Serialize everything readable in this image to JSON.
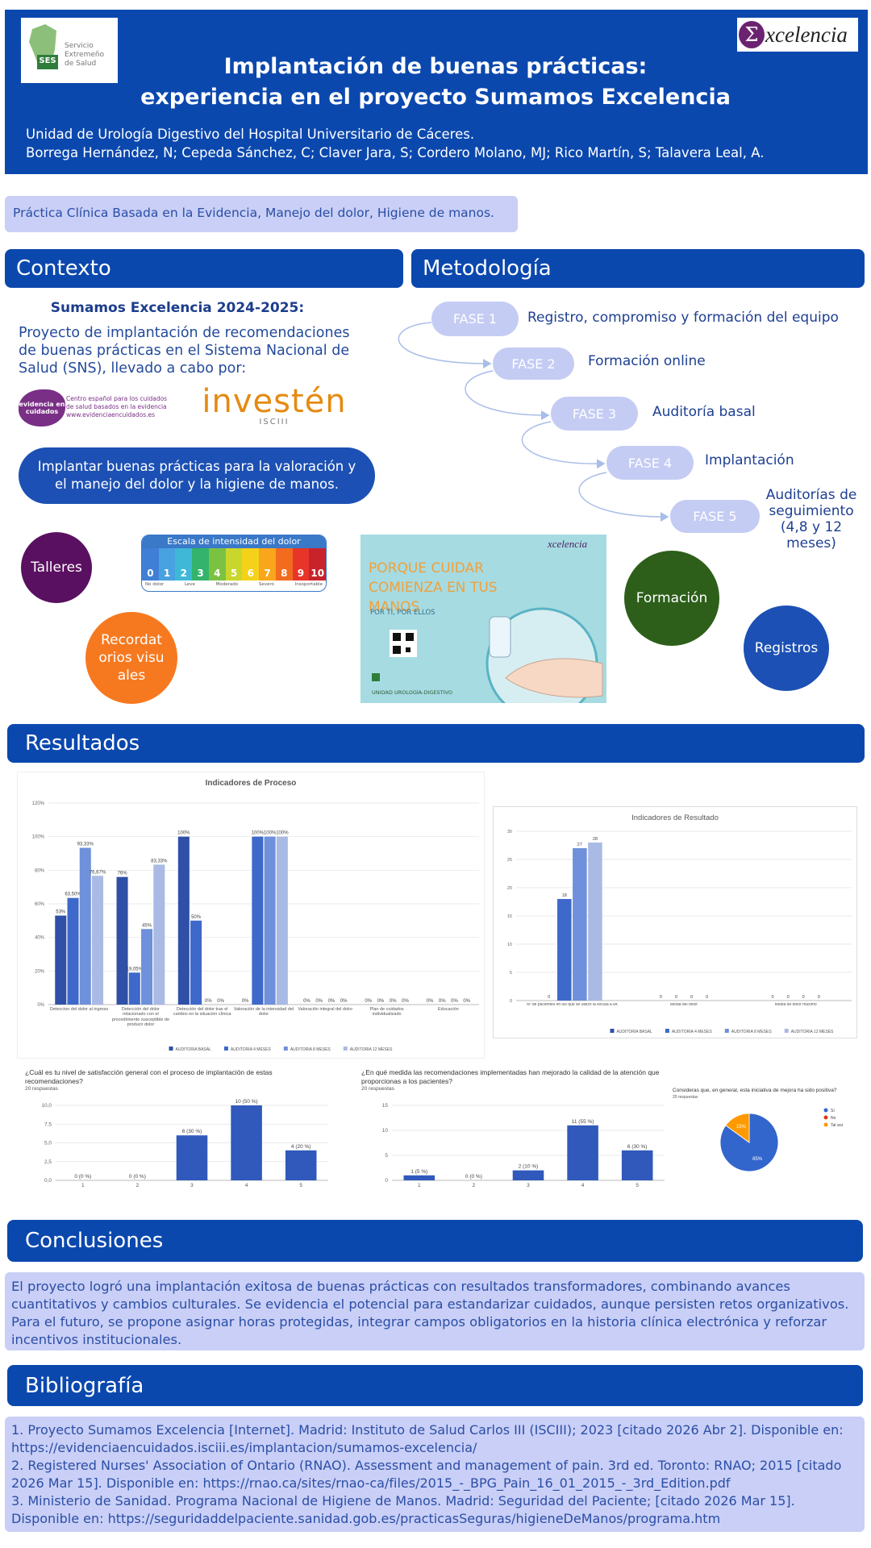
{
  "header": {
    "logo_left": {
      "badge": "SES",
      "lines": [
        "Servicio",
        "Extremeño",
        "de Salud"
      ]
    },
    "logo_right": {
      "symbol": "Σ",
      "text": "xcelencia"
    },
    "title": [
      "Implantación de buenas prácticas:",
      "experiencia en el proyecto Sumamos Excelencia"
    ],
    "affiliation": "Unidad de Urología Digestivo del Hospital Universitario de Cáceres.",
    "authors": "Borrega Hernández, N; Cepeda Sánchez, C; Claver Jara, S; Cordero Molano, MJ; Rico Martín, S; Talavera Leal, A."
  },
  "keywords": "Práctica Clínica Basada en la Evidencia, Manejo del dolor, Higiene de manos.",
  "context": {
    "heading": "Contexto",
    "subheading": "Sumamos Excelencia 2024-2025:",
    "text": "Proyecto de implantación de recomendaciones de buenas prácticas en el Sistema  Nacional de Salud (SNS), llevado a cabo por:",
    "partners": {
      "evidencia": {
        "mark": "evidencia en cuidados",
        "lines": [
          "Centro español para los cuidados",
          "de salud basados en la evidencia",
          "www.evidenciaencuidados.es"
        ]
      },
      "investen": {
        "name": "investén",
        "sub": "ISCIII"
      }
    },
    "goal": "Implantar buenas prácticas para la valoración y el manejo del dolor y la higiene de manos.",
    "actions": [
      "Talleres",
      "Recordatorios visuales"
    ],
    "pain_scale": {
      "title": "Escala de intensidad del dolor",
      "numbers": [
        "0",
        "1",
        "2",
        "3",
        "4",
        "5",
        "6",
        "7",
        "8",
        "9",
        "10"
      ],
      "levels": [
        "No dolor",
        "Leve",
        "Moderado",
        "Severo",
        "Insoportable"
      ]
    },
    "hand_poster": {
      "logo": "xcelencia",
      "headline": "PORQUE CUIDAR COMIENZA EN TUS MANOS",
      "tagline": "POR TI, POR ELLOS",
      "unit": "UNIDAD UROLOGÍA-DIGESTIVO"
    }
  },
  "methodology": {
    "heading": "Metodología",
    "phases": [
      {
        "label": "FASE 1",
        "text": "Registro, compromiso y formación del equipo"
      },
      {
        "label": "FASE 2",
        "text": "Formación online"
      },
      {
        "label": "FASE 3",
        "text": "Auditoría basal"
      },
      {
        "label": "FASE 4",
        "text": "Implantación"
      },
      {
        "label": "FASE 5",
        "text": "Auditorías de seguimiento (4,8 y 12 meses)"
      }
    ],
    "actions": [
      "Formación",
      "Registros"
    ]
  },
  "results": {
    "heading": "Resultados"
  },
  "chart_data": [
    {
      "type": "bar",
      "title": "Indicadores de Proceso",
      "categories": [
        "Deteccion del dolor al ingreso",
        "Detección del dolor relacionado con el procedimiento susceptible de producir dolor",
        "Detección del dolor tras el cambio en la situación clínica",
        "Valoración de la intensidad del dolor",
        "Valoración integral del dolor",
        "Plan de cuidados individualizado",
        "Educación"
      ],
      "series": [
        {
          "name": "AUDITORIA BASAL",
          "color": "#2f50a6",
          "values": [
            53,
            76,
            100,
            0,
            0,
            0,
            0
          ],
          "value_labels": [
            "53%",
            "76%",
            "100%",
            "0%",
            "0%",
            "0%",
            "0%"
          ]
        },
        {
          "name": "AUDITORIA 4 MESES",
          "color": "#3e69cb",
          "values": [
            63.5,
            19.05,
            50,
            100,
            0,
            0,
            0
          ],
          "value_labels": [
            "63,50%",
            "19,05%",
            "50%",
            "100%",
            "0%",
            "0%",
            "0%"
          ]
        },
        {
          "name": "AUDITORIA 8 MESES",
          "color": "#6f90da",
          "values": [
            93.33,
            45,
            0,
            100,
            0,
            0,
            0
          ],
          "value_labels": [
            "93,33%",
            "45%",
            "0%",
            "100%",
            "0%",
            "0%",
            "0%"
          ]
        },
        {
          "name": "AUDITORIA 12 MESES",
          "color": "#a9bae4",
          "values": [
            76.67,
            83.33,
            0,
            100,
            0,
            0,
            0
          ],
          "value_labels": [
            "76,67%",
            "83,33%",
            "0%",
            "100%",
            "0%",
            "0%",
            "0%"
          ]
        }
      ],
      "ylim": [
        0,
        120
      ],
      "yticks": [
        {
          "value": 0,
          "label": "0%"
        },
        {
          "value": 20,
          "label": "20%"
        },
        {
          "value": 40,
          "label": "40%"
        },
        {
          "value": 60,
          "label": "60%"
        },
        {
          "value": 80,
          "label": "80%"
        },
        {
          "value": 100,
          "label": "100%"
        },
        {
          "value": 120,
          "label": "120%"
        }
      ],
      "grid": true,
      "legend": "bottom"
    },
    {
      "type": "bar",
      "title": "Indicadores de Resultado",
      "categories": [
        "Nº de pacientes en los que se utilizó la escala EVA",
        "Media del dolor",
        "Media de dolor máximo"
      ],
      "series": [
        {
          "name": "AUDITORIA BASAL",
          "color": "#2f50a6",
          "values": [
            0,
            0,
            0
          ]
        },
        {
          "name": "AUDITORIA 4 MESES",
          "color": "#3e69cb",
          "values": [
            18,
            0,
            0
          ]
        },
        {
          "name": "AUDITORIA 8 MESES",
          "color": "#6f90da",
          "values": [
            27,
            0,
            0
          ]
        },
        {
          "name": "AUDITORIA 12 MESES",
          "color": "#a9bae4",
          "values": [
            28,
            0,
            0
          ]
        }
      ],
      "ylim": [
        0,
        30
      ],
      "yticks": [
        0,
        5,
        10,
        15,
        20,
        25,
        30
      ],
      "grid": true,
      "legend": "bottom"
    },
    {
      "type": "bar",
      "title": "¿Cuál es tu nivel de satisfacción general con el proceso de implantación de estas recomendaciones?",
      "subtitle": "20 respuestas",
      "categories": [
        "1",
        "2",
        "3",
        "4",
        "5"
      ],
      "values": [
        0,
        0,
        6,
        10,
        4
      ],
      "value_labels": [
        "0 (0 %)",
        "0 (0 %)",
        "6 (30 %)",
        "10 (50 %)",
        "4 (20 %)"
      ],
      "color": "#3059bb",
      "ylim": [
        0,
        10
      ],
      "yticks": [
        {
          "value": 0,
          "label": "0,0"
        },
        {
          "value": 2.5,
          "label": "2,5"
        },
        {
          "value": 5,
          "label": "5,0"
        },
        {
          "value": 7.5,
          "label": "7,5"
        },
        {
          "value": 10,
          "label": "10,0"
        }
      ],
      "grid": true
    },
    {
      "type": "bar",
      "title": "¿En qué medida las recomendaciones implementadas han mejorado la calidad de la atención que proporcionas a los pacientes?",
      "subtitle": "20 respuestas",
      "categories": [
        "1",
        "2",
        "3",
        "4",
        "5"
      ],
      "values": [
        1,
        0,
        2,
        11,
        6
      ],
      "value_labels": [
        "1 (5 %)",
        "0 (0 %)",
        "2 (10 %)",
        "11 (55 %)",
        "6 (30 %)"
      ],
      "color": "#3059bb",
      "ylim": [
        0,
        15
      ],
      "yticks": [
        0,
        5,
        10,
        15
      ],
      "grid": true
    },
    {
      "type": "pie",
      "title": "Consideras que, en general, esta iniciativa de mejora ha sido positiva?",
      "subtitle": "20 respuestas",
      "categories": [
        "Sí",
        "No",
        "Tal vez"
      ],
      "values": [
        85,
        0,
        15
      ],
      "value_labels": [
        "85%",
        null,
        "15%"
      ],
      "colors": [
        "#3366cc",
        "#dc3912",
        "#ff9900"
      ],
      "legend": "right"
    }
  ],
  "conclusions": {
    "heading": "Conclusiones",
    "text": "El proyecto logró una implantación exitosa de buenas prácticas con resultados transformadores, combinando avances cuantitativos y cambios culturales. Se evidencia el potencial para estandarizar cuidados, aunque persisten retos organizativos. Para el futuro, se propone asignar horas protegidas, integrar campos obligatorios en la historia clínica electrónica y reforzar incentivos institucionales."
  },
  "bibliography": {
    "heading": "Bibliografía",
    "items": [
      "1. Proyecto Sumamos Excelencia [Internet]. Madrid: Instituto de Salud Carlos III (ISCIII); 2023 [citado 2026 Abr 2]. Disponible en: https://evidenciaencuidados.isciii.es/implantacion/sumamos-excelencia/",
      "2. Registered Nurses' Association of Ontario (RNAO). Assessment and management of pain. 3rd ed. Toronto: RNAO; 2015 [citado 2026 Mar 15]. Disponible en: https://rnao.ca/sites/rnao-ca/files/2015_-_BPG_Pain_16_01_2015_-_3rd_Edition.pdf",
      "3. Ministerio de Sanidad. Programa Nacional de Higiene de Manos. Madrid: Seguridad del Paciente; [citado 2026 Mar 15]. Disponible en: https://seguridaddelpaciente.sanidad.gob.es/practicasSeguras/higieneDeManos/programa.htm"
    ]
  }
}
